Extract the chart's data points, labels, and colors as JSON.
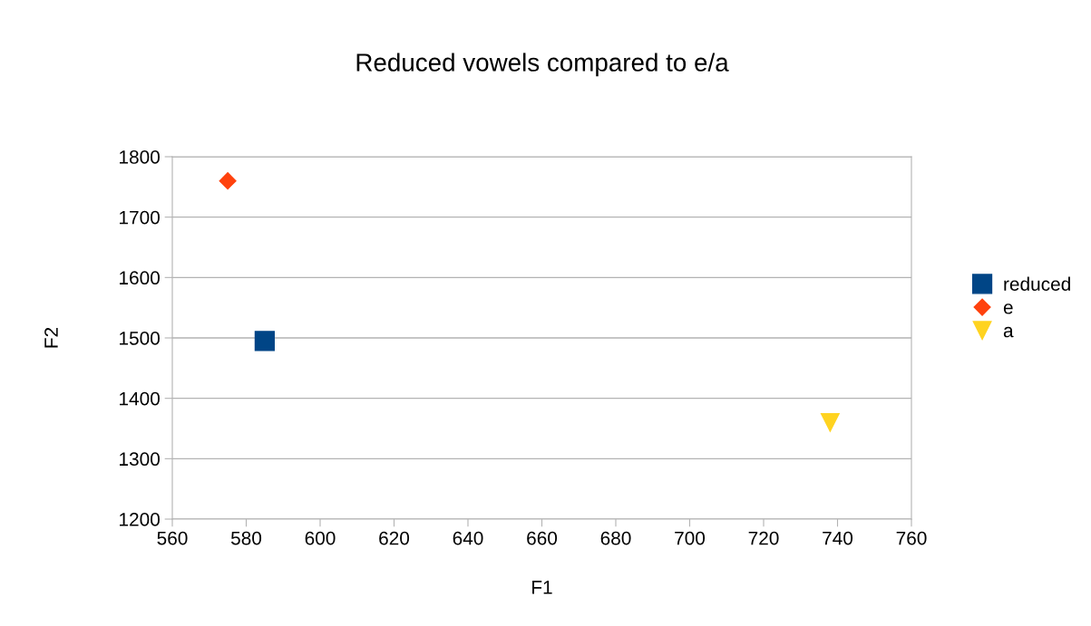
{
  "chart_data": {
    "type": "scatter",
    "title": "Reduced vowels compared to e/a",
    "xlabel": "F1",
    "ylabel": "F2",
    "xlim": [
      560,
      760
    ],
    "xticks": [
      560,
      580,
      600,
      620,
      640,
      660,
      680,
      700,
      720,
      740,
      760
    ],
    "ylim": [
      1200,
      1800
    ],
    "yticks": [
      1200,
      1300,
      1400,
      1500,
      1600,
      1700,
      1800
    ],
    "grid": "y",
    "legend": "right",
    "series": [
      {
        "name": "reduced",
        "color": "#004586",
        "marker": "square",
        "x": [
          585
        ],
        "values": [
          1495
        ]
      },
      {
        "name": "e",
        "color": "#ff420e",
        "marker": "diamond",
        "x": [
          575
        ],
        "values": [
          1760
        ]
      },
      {
        "name": "a",
        "color": "#ffd320",
        "marker": "triangle",
        "x": [
          738
        ],
        "values": [
          1360
        ]
      }
    ]
  }
}
